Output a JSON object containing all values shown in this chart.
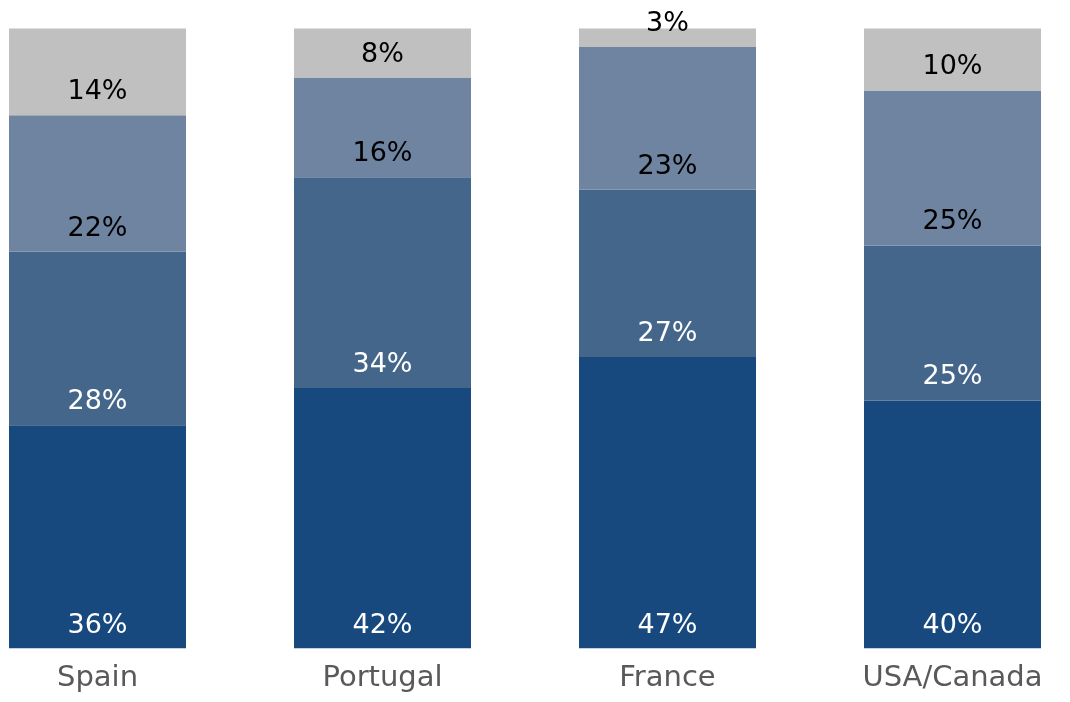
{
  "chart_data": {
    "type": "bar",
    "stacked": true,
    "categories": [
      "Spain",
      "Portugal",
      "France",
      "USA/Canada"
    ],
    "series": [
      {
        "color": "#17497f",
        "values": [
          36,
          42,
          47,
          40
        ],
        "value_labels": [
          "36%",
          "42%",
          "47%",
          "40%"
        ]
      },
      {
        "color": "#44668a",
        "values": [
          28,
          34,
          27,
          25
        ],
        "value_labels": [
          "28%",
          "34%",
          "27%",
          "25%"
        ]
      },
      {
        "color": "#6e84a0",
        "values": [
          22,
          16,
          23,
          25
        ],
        "value_labels": [
          "22%",
          "16%",
          "23%",
          "25%"
        ]
      },
      {
        "color": "#c0c0c0",
        "values": [
          14,
          8,
          3,
          10
        ],
        "value_labels": [
          "14%",
          "8%",
          "3%",
          "10%"
        ]
      }
    ],
    "tick_labels": "x"
  }
}
